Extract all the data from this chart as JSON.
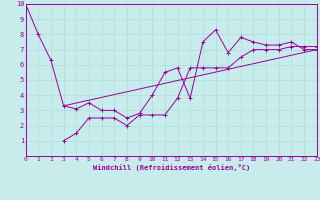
{
  "xlabel": "Windchill (Refroidissement éolien,°C)",
  "xlim": [
    0,
    23
  ],
  "ylim": [
    0,
    10
  ],
  "xticks": [
    0,
    1,
    2,
    3,
    4,
    5,
    6,
    7,
    8,
    9,
    10,
    11,
    12,
    13,
    14,
    15,
    16,
    17,
    18,
    19,
    20,
    21,
    22,
    23
  ],
  "yticks": [
    1,
    2,
    3,
    4,
    5,
    6,
    7,
    8,
    9,
    10
  ],
  "bg_color": "#c8ecec",
  "line_color": "#990099",
  "grid_color": "#aadddd",
  "line1_x": [
    0,
    1,
    2,
    3,
    4,
    5,
    6,
    7,
    8,
    9,
    10,
    11,
    12,
    13,
    14,
    15,
    16,
    17,
    18,
    19,
    20,
    21,
    22,
    23
  ],
  "line1_y": [
    10,
    8.0,
    6.3,
    3.3,
    3.1,
    3.5,
    3.0,
    3.0,
    2.5,
    2.8,
    4.0,
    5.5,
    5.8,
    3.8,
    7.5,
    8.3,
    6.8,
    7.8,
    7.5,
    7.3,
    7.3,
    7.5,
    7.0,
    7.0
  ],
  "line2_x": [
    3,
    4,
    5,
    6,
    7,
    8,
    9,
    10,
    11,
    12,
    13,
    14,
    15,
    16,
    17,
    18,
    19,
    20,
    21,
    22,
    23
  ],
  "line2_y": [
    1.0,
    1.5,
    2.5,
    2.5,
    2.5,
    2.0,
    2.7,
    2.7,
    2.7,
    3.8,
    5.8,
    5.8,
    5.8,
    5.8,
    6.5,
    7.0,
    7.0,
    7.0,
    7.2,
    7.2,
    7.2
  ],
  "line3_x": [
    3,
    23
  ],
  "line3_y": [
    3.3,
    7.0
  ]
}
